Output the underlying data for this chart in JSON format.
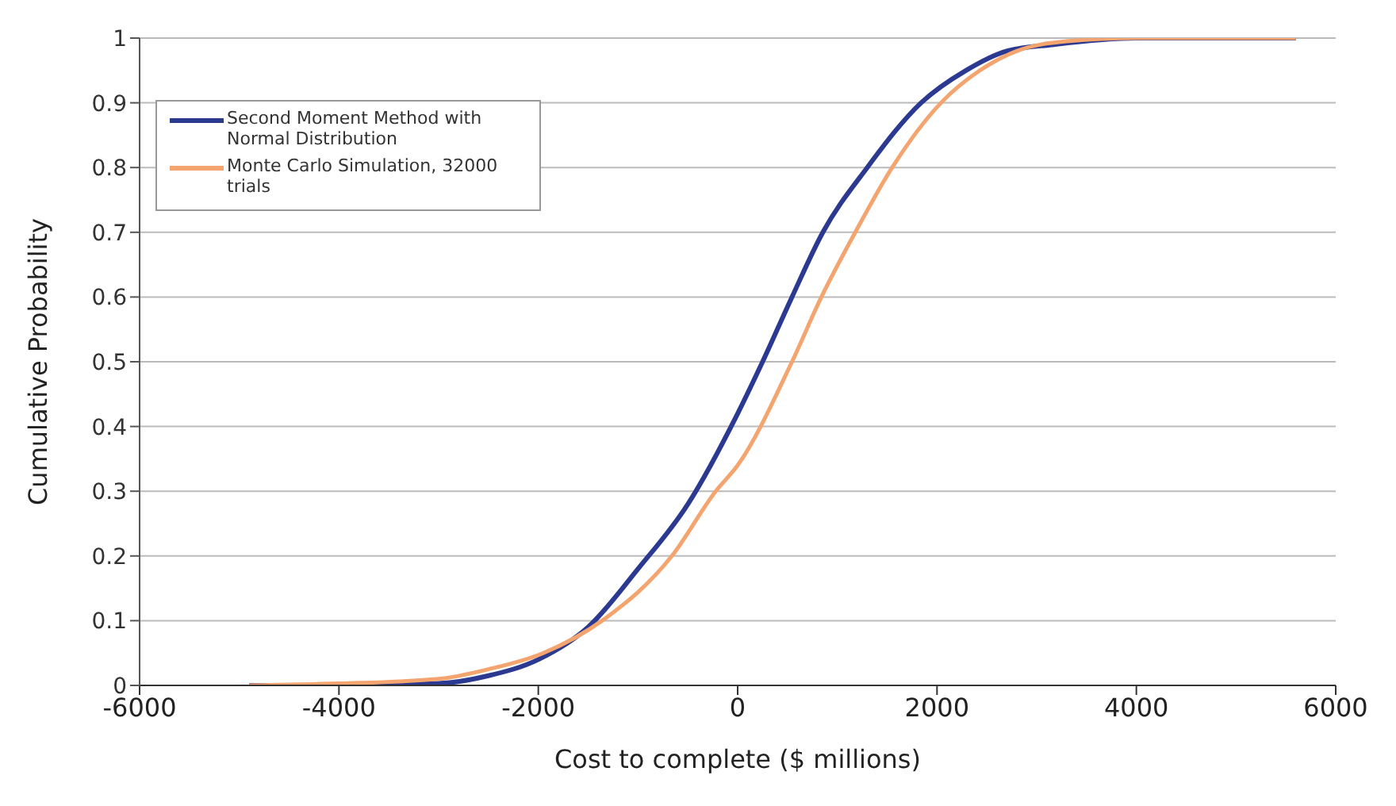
{
  "chart_data": {
    "type": "line",
    "xlabel": "Cost to complete ($ millions)",
    "ylabel": "Cumulative Probability",
    "xlim": [
      -6000,
      6000
    ],
    "xticks": [
      -6000,
      -4000,
      -2000,
      0,
      2000,
      4000,
      6000
    ],
    "ylim": [
      0,
      1
    ],
    "yticks": [
      0,
      0.1,
      0.2,
      0.3,
      0.4,
      0.5,
      0.6,
      0.7,
      0.8,
      0.9,
      1
    ],
    "grid": "y",
    "legend": "top left",
    "marker": "none",
    "line_style": "solid",
    "series": [
      {
        "name": "Second Moment Method with Normal Distribution",
        "color": "#2b3990",
        "x": [
          -4900,
          -4000,
          -3000,
          -2500,
          -2000,
          -1500,
          -1000,
          -500,
          0,
          250,
          545,
          855,
          1300,
          1840,
          2290,
          2700,
          3170,
          4000,
          5600
        ],
        "values": [
          0,
          0,
          0.003,
          0.015,
          0.04,
          0.09,
          0.18,
          0.28,
          0.42,
          0.5,
          0.6,
          0.7,
          0.8,
          0.9,
          0.95,
          0.98,
          0.99,
          1,
          1
        ]
      },
      {
        "name": "Monte Carlo Simulation, 32000 trials",
        "color": "#f4a46e",
        "x": [
          -4900,
          -4000,
          -3000,
          -2500,
          -1950,
          -1360,
          -660,
          -220,
          0,
          545,
          840,
          1180,
          1550,
          2040,
          2430,
          2800,
          3300,
          4000,
          5600
        ],
        "values": [
          0,
          0.003,
          0.01,
          0.025,
          0.05,
          0.1,
          0.2,
          0.3,
          0.34,
          0.5,
          0.6,
          0.7,
          0.8,
          0.9,
          0.95,
          0.98,
          0.995,
          1,
          1
        ]
      }
    ]
  }
}
